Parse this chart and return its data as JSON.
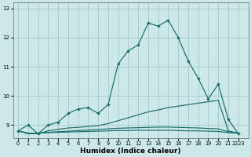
{
  "xlabel": "Humidex (Indice chaleur)",
  "bg_color": "#cce8e8",
  "grid_color": "#aacccc",
  "line_color": "#1a6b6b",
  "series": [
    [
      8.8,
      9.0,
      8.7,
      9.0,
      9.1,
      9.4,
      9.55,
      9.6,
      9.4,
      9.7,
      11.1,
      11.55,
      11.75,
      12.5,
      12.4,
      12.6,
      12.0,
      11.2,
      10.6,
      9.9,
      10.4,
      9.2,
      8.7
    ],
    [
      8.8,
      8.7,
      8.7,
      8.8,
      8.85,
      8.9,
      8.92,
      8.95,
      8.98,
      9.05,
      9.15,
      9.25,
      9.35,
      9.45,
      9.52,
      9.6,
      9.65,
      9.7,
      9.75,
      9.8,
      9.85,
      8.8,
      8.72
    ],
    [
      8.8,
      8.72,
      8.72,
      8.75,
      8.77,
      8.79,
      8.81,
      8.83,
      8.85,
      8.87,
      8.89,
      8.9,
      8.91,
      8.92,
      8.93,
      8.93,
      8.92,
      8.91,
      8.9,
      8.88,
      8.87,
      8.77,
      8.72
    ],
    [
      8.8,
      8.72,
      8.72,
      8.74,
      8.75,
      8.76,
      8.77,
      8.78,
      8.79,
      8.8,
      8.81,
      8.81,
      8.82,
      8.82,
      8.82,
      8.82,
      8.81,
      8.8,
      8.8,
      8.79,
      8.78,
      8.74,
      8.72
    ]
  ],
  "series_markers": [
    true,
    false,
    false,
    false
  ],
  "x_values": [
    0,
    1,
    2,
    3,
    4,
    5,
    6,
    7,
    8,
    9,
    10,
    11,
    12,
    13,
    14,
    15,
    16,
    17,
    18,
    19,
    20,
    21,
    22
  ],
  "xlim": [
    -0.5,
    23
  ],
  "ylim": [
    8.55,
    13.2
  ],
  "yticks": [
    9,
    10,
    11,
    12,
    13
  ],
  "ytick_labels": [
    "9",
    "10",
    "11",
    "12",
    "13"
  ],
  "xtick_positions": [
    0,
    1,
    2,
    3,
    4,
    5,
    6,
    7,
    8,
    9,
    10,
    11,
    12,
    13,
    14,
    15,
    16,
    17,
    18,
    19,
    20,
    21,
    22
  ],
  "xtick_labels": [
    "0",
    "1",
    "2",
    "3",
    "4",
    "5",
    "6",
    "7",
    "8",
    "9",
    "10",
    "11",
    "12",
    "13",
    "14",
    "15",
    "16",
    "17",
    "18",
    "19",
    "20",
    "21",
    "2223"
  ],
  "tick_fontsize": 5.0,
  "xlabel_fontsize": 6.5
}
